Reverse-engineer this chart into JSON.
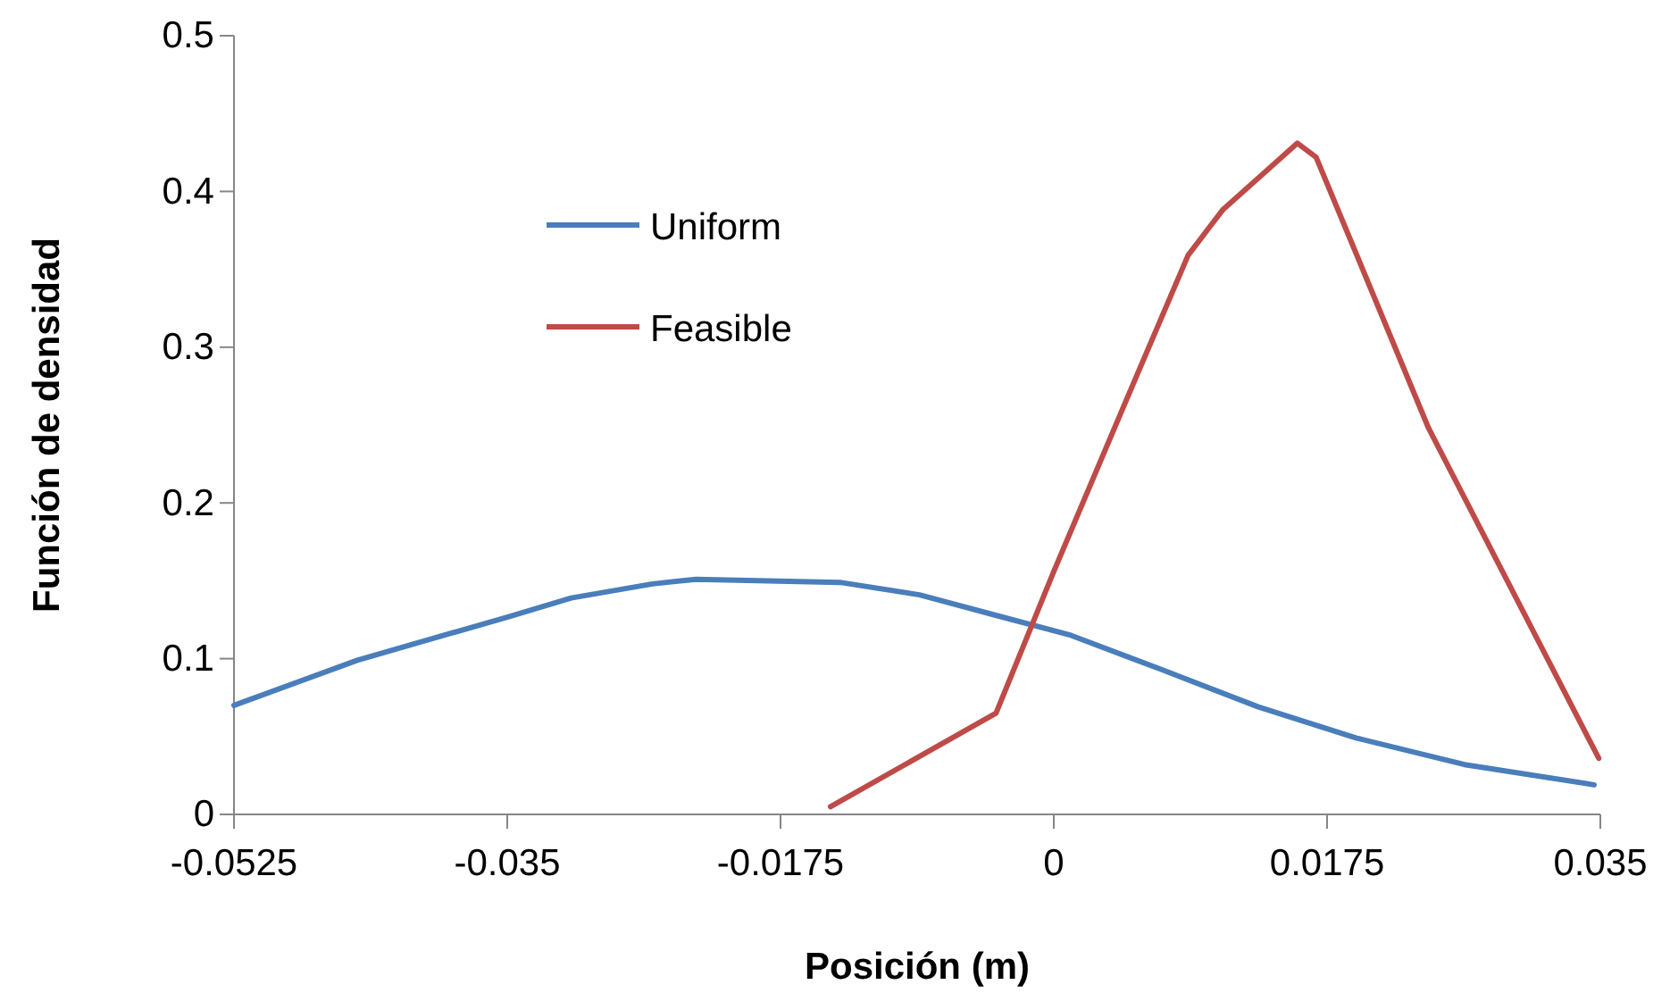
{
  "chart_data": {
    "type": "line",
    "xlabel": "Posición (m)",
    "ylabel": "Función de densidad",
    "xlim": [
      -0.0525,
      0.035
    ],
    "xticks": [
      -0.0525,
      -0.035,
      -0.0175,
      0,
      0.0175,
      0.035
    ],
    "ylim": [
      0,
      0.5
    ],
    "yticks": [
      0,
      0.1,
      0.2,
      0.3,
      0.4,
      0.5
    ],
    "grid": false,
    "legend": "top left",
    "marker": "none",
    "line_style": "solid",
    "series": [
      {
        "name": "Uniform",
        "color": "#4a7ebb",
        "x": [
          -0.0525,
          -0.0446,
          -0.0349,
          -0.0309,
          -0.0257,
          -0.0229,
          -0.0137,
          -0.0086,
          -0.0034,
          0.0011,
          0.0069,
          0.0131,
          0.0194,
          0.0263,
          0.0346
        ],
        "values": [
          0.07,
          0.099,
          0.127,
          0.139,
          0.148,
          0.151,
          0.149,
          0.141,
          0.127,
          0.115,
          0.093,
          0.069,
          0.049,
          0.032,
          0.019
        ]
      },
      {
        "name": "Feasible",
        "color": "#be4b48",
        "x": [
          -0.0143,
          -0.0037,
          0,
          0.0046,
          0.0086,
          0.0108,
          0.0137,
          0.0156,
          0.0168,
          0.024,
          0.0349
        ],
        "values": [
          0.005,
          0.065,
          0.156,
          0.265,
          0.359,
          0.388,
          0.414,
          0.431,
          0.422,
          0.248,
          0.036
        ]
      }
    ]
  }
}
